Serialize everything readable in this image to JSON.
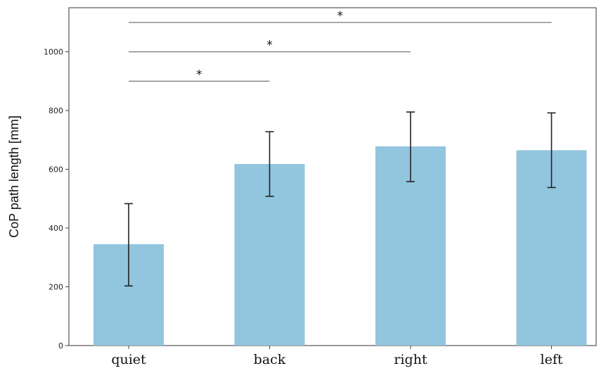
{
  "chart_data": {
    "type": "bar",
    "categories": [
      "quiet",
      "back",
      "right",
      "left"
    ],
    "values": [
      345,
      618,
      678,
      665
    ],
    "error_low": [
      203,
      508,
      558,
      538
    ],
    "error_high": [
      483,
      728,
      795,
      792
    ],
    "ylabel": "CoP path length [mm]",
    "xlabel": "",
    "ylim": [
      0,
      1150
    ],
    "yticks": [
      0,
      200,
      400,
      600,
      800,
      1000
    ],
    "grid": false,
    "bar_color": "#92c5de",
    "significance": [
      {
        "from": "quiet",
        "to": "back",
        "y": 900,
        "label": "*"
      },
      {
        "from": "quiet",
        "to": "right",
        "y": 1000,
        "label": "*"
      },
      {
        "from": "quiet",
        "to": "left",
        "y": 1100,
        "label": "*"
      }
    ]
  }
}
